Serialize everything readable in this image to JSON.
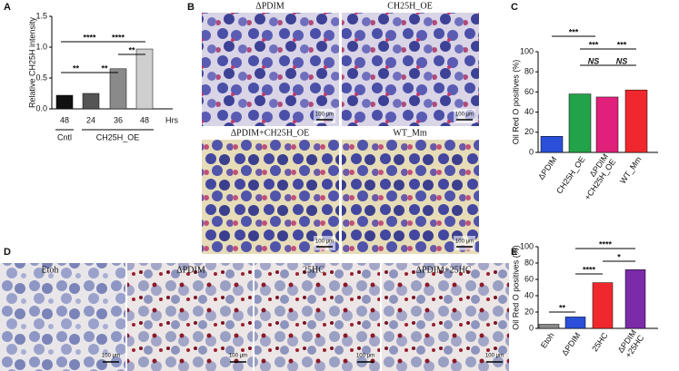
{
  "panels": {
    "letters": [
      "A",
      "B",
      "C",
      "D",
      "E"
    ],
    "B": {
      "labels": [
        "ΔPDIM",
        "CH25H_OE",
        "ΔPDIM+CH25H_OE",
        "WT_Mm"
      ],
      "scale_bar": "100 μm"
    },
    "D": {
      "labels": [
        "Etoh",
        "ΔPDIM",
        "25HC",
        "ΔPDIM+25HC"
      ],
      "scale_bar": "100 μm"
    }
  },
  "chart_data": [
    {
      "type": "bar",
      "ylabel": "Relative  CH25H intensity",
      "categories": [
        "48",
        "24",
        "36",
        "48"
      ],
      "values": [
        0.22,
        0.25,
        0.65,
        0.97
      ],
      "colors": [
        "#111111",
        "#555555",
        "#8a8a8a",
        "#cfcfcf"
      ],
      "group_labels": [
        "Cntl",
        "CH25H_OE"
      ],
      "x_unit": "Hrs",
      "ylim": [
        0,
        1.5
      ],
      "yticks": [
        {
          "value": 0,
          "label": "0.0"
        },
        {
          "value": 0.5,
          "label": "0.5"
        },
        {
          "value": 1,
          "label": "1.0"
        },
        {
          "value": 1.5,
          "label": "1.5"
        }
      ],
      "annotations": [
        "****",
        "****",
        "**",
        "**",
        "**"
      ]
    },
    {
      "type": "bar",
      "ylabel": "Oil Red O positives (%)",
      "categories": [
        "ΔPDIM",
        "CH25H_OE",
        "ΔPDIM +CH25H_OE",
        "WT_Mm"
      ],
      "values": [
        16,
        58,
        55,
        62
      ],
      "colors": [
        "#2a4fd8",
        "#22a34a",
        "#e0207a",
        "#f0282d"
      ],
      "ylim": [
        0,
        100
      ],
      "yticks": [
        0,
        20,
        40,
        60,
        80,
        100
      ],
      "annotations": [
        "***",
        "***",
        "***",
        "NS",
        "NS"
      ]
    },
    {
      "type": "bar",
      "ylabel": "Oil Red O positives (%)",
      "categories": [
        "Etoh",
        "ΔPDIM",
        "25HC",
        "ΔPDIM +25HC"
      ],
      "values": [
        5,
        14,
        56,
        72
      ],
      "colors": [
        "#8a8a8a",
        "#2a4fd8",
        "#f0282d",
        "#7b2aa8"
      ],
      "ylim": [
        0,
        100
      ],
      "yticks": [
        0,
        20,
        40,
        60,
        80,
        100
      ],
      "annotations": [
        "****",
        "*",
        "****",
        "**"
      ]
    }
  ]
}
